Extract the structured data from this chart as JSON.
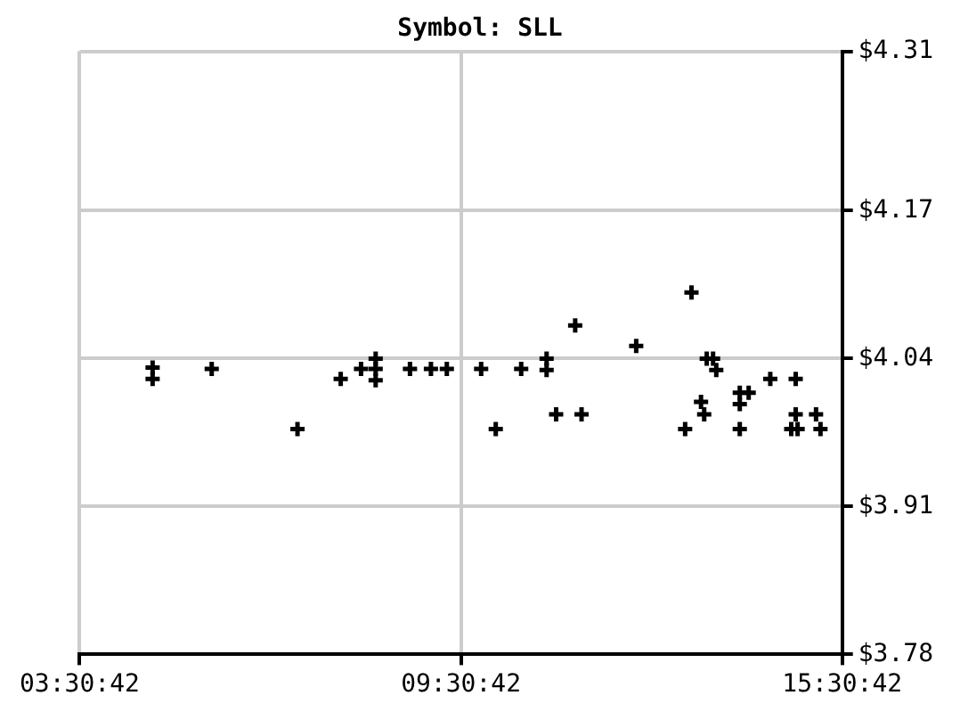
{
  "chart_data": {
    "type": "scatter",
    "title": "Symbol: SLL",
    "marker": "cross",
    "grid": true,
    "color": "#000000",
    "x": [
      4.66,
      4.66,
      5.59,
      6.94,
      7.62,
      7.94,
      8.17,
      8.17,
      8.17,
      8.71,
      9.04,
      9.29,
      9.83,
      10.06,
      10.46,
      10.86,
      10.86,
      11.01,
      11.31,
      11.41,
      12.27,
      13.14,
      13.04,
      13.29,
      13.31,
      13.34,
      13.38,
      13.48,
      13.53,
      13.9,
      14.04,
      13.9,
      13.9,
      14.38,
      14.78,
      14.78,
      14.71,
      14.81,
      15.1,
      15.17
    ],
    "values": [
      4.032,
      4.022,
      4.031,
      3.978,
      4.022,
      4.031,
      4.04,
      4.031,
      4.021,
      4.031,
      4.031,
      4.031,
      4.031,
      3.978,
      4.031,
      4.04,
      4.03,
      3.991,
      4.069,
      3.991,
      4.051,
      4.098,
      3.978,
      4.002,
      null,
      3.991,
      4.04,
      4.04,
      4.03,
      4.01,
      4.01,
      4.0,
      3.978,
      4.022,
      4.022,
      3.991,
      3.978,
      3.978,
      3.991,
      3.978
    ],
    "xlim": [
      3.5117,
      15.5117
    ],
    "xticks": [
      {
        "value": 3.5117,
        "label": "03:30:42"
      },
      {
        "value": 9.5117,
        "label": "09:30:42"
      },
      {
        "value": 15.5117,
        "label": "15:30:42"
      }
    ],
    "ylim": [
      3.78,
      4.31
    ],
    "yticks": [
      {
        "value": 3.78,
        "label": "$3.78"
      },
      {
        "value": 3.91,
        "label": "$3.91"
      },
      {
        "value": 4.04,
        "label": "$4.04"
      },
      {
        "value": 4.17,
        "label": "$4.17"
      },
      {
        "value": 4.31,
        "label": "$4.31"
      }
    ]
  }
}
